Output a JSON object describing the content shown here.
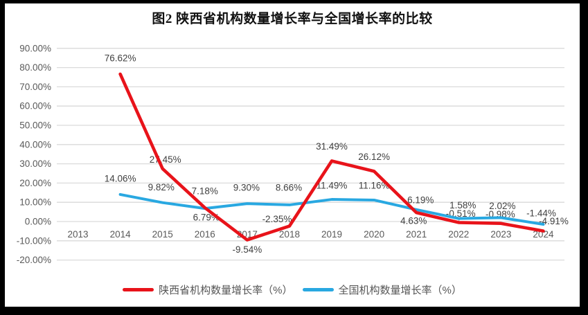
{
  "window": {
    "frame_color": "#000000",
    "background": "#ffffff"
  },
  "title": "图2 陕西省机构数量增长率与全国增长率的比较",
  "chart_data": {
    "type": "line",
    "title": "图2 陕西省机构数量增长率与全国增长率的比较",
    "categories": [
      "2013",
      "2014",
      "2015",
      "2016",
      "2017",
      "2018",
      "2019",
      "2020",
      "2021",
      "2022",
      "2023",
      "2024"
    ],
    "series": [
      {
        "name": "陕西省机构数量增长率（%）",
        "color": "#e8131a",
        "values": [
          null,
          76.62,
          27.45,
          7.18,
          -9.54,
          -2.35,
          31.49,
          26.12,
          4.63,
          -0.51,
          -0.98,
          -4.91
        ],
        "labels": [
          "",
          "76.62%",
          "27.45%",
          "7.18%",
          "-9.54%",
          "-2.35%",
          "31.49%",
          "26.12%",
          "4.63%",
          "-0.51%",
          "-0.98%",
          "-4.91%"
        ]
      },
      {
        "name": "全国机构数量增长率（%）",
        "color": "#29a8e1",
        "values": [
          null,
          14.06,
          9.82,
          6.79,
          9.3,
          8.66,
          11.49,
          11.16,
          6.19,
          1.58,
          2.02,
          -1.44
        ],
        "labels": [
          "",
          "14.06%",
          "9.82%",
          "6.79%",
          "9.30%",
          "8.66%",
          "11.49%",
          "11.16%",
          "6.19%",
          "1.58%",
          "2.02%",
          "-1.44%"
        ]
      }
    ],
    "y_axis": {
      "min": -20,
      "max": 90,
      "step": 10,
      "tick_labels": [
        "90.00%",
        "80.00%",
        "70.00%",
        "60.00%",
        "50.00%",
        "40.00%",
        "30.00%",
        "20.00%",
        "10.00%",
        "0.00%",
        "-10.00%",
        "-20.00%"
      ]
    },
    "grid": true,
    "gridline_color": "#dadada",
    "axis_label_color": "#595959",
    "data_label_color": "#404040",
    "leader_line_color": "#a6a6a6",
    "legend_position": "bottom"
  }
}
